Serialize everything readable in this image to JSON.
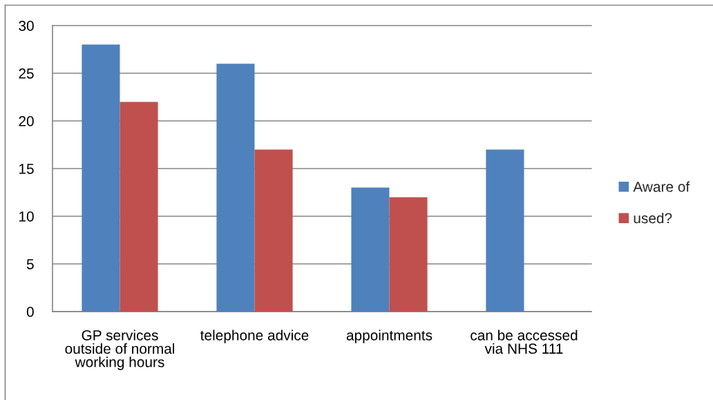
{
  "chart_data": {
    "type": "bar",
    "categories": [
      "GP services outside of normal working hours",
      "telephone advice",
      "appointments",
      "can be accessed via NHS 111"
    ],
    "series": [
      {
        "name": "Aware of",
        "color": "#4f81bd",
        "values": [
          28,
          26,
          13,
          17
        ]
      },
      {
        "name": "used?",
        "color": "#c0504d",
        "values": [
          22,
          17,
          12,
          null
        ]
      }
    ],
    "ylim": [
      0,
      30
    ],
    "yticks": [
      0,
      5,
      10,
      15,
      20,
      25,
      30
    ],
    "grid": "y",
    "legend": "right"
  }
}
